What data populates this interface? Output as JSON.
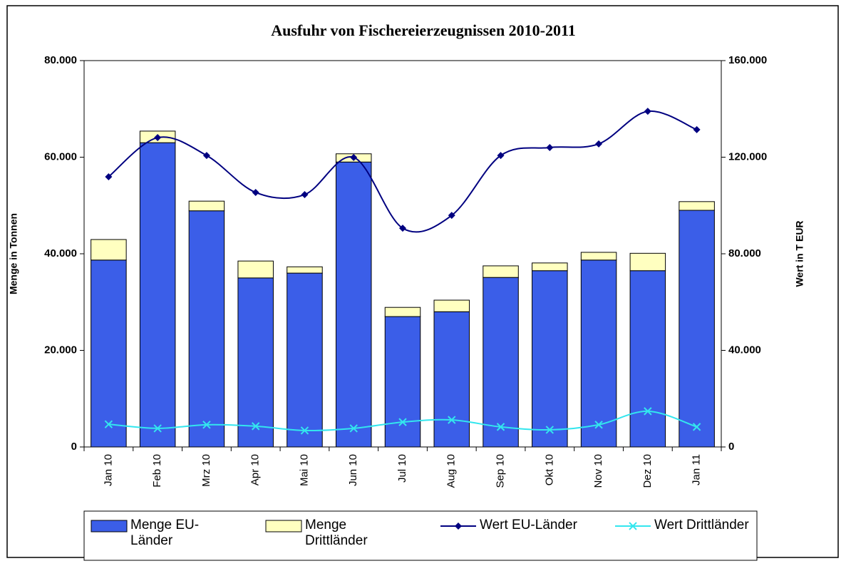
{
  "chart_data": {
    "type": "bar-line",
    "title": "Ausfuhr von Fischereierzeugnissen 2010-2011",
    "y_label": "Menge in Tonnen",
    "y2_label": "Wert in T EUR",
    "categories": [
      "Jan 10",
      "Feb 10",
      "Mrz 10",
      "Apr 10",
      "Mai 10",
      "Jun 10",
      "Jul 10",
      "Aug 10",
      "Sep 10",
      "Okt 10",
      "Nov 10",
      "Dez 10",
      "Jan 11"
    ],
    "series": [
      {
        "name": "Menge EU-Länder",
        "type": "bar",
        "color": "#3b5ee8",
        "values": [
          38700,
          63000,
          48900,
          35000,
          36000,
          59000,
          27000,
          28000,
          35100,
          36500,
          38700,
          36500,
          49000
        ]
      },
      {
        "name": "Menge Drittländer",
        "type": "bar",
        "color": "#ffffc0",
        "values": [
          4250,
          2400,
          2000,
          3500,
          1300,
          1700,
          1900,
          2400,
          2400,
          1600,
          1600,
          3600,
          1800
        ]
      },
      {
        "name": "Wert EU-Länder",
        "type": "line",
        "axis": "y2",
        "marker": "diamond",
        "color": "#000080",
        "values": [
          111900,
          128100,
          120700,
          105400,
          104500,
          119900,
          90600,
          95900,
          120700,
          124000,
          125500,
          139000,
          131400
        ]
      },
      {
        "name": "Wert Drittländer",
        "type": "line",
        "axis": "y2",
        "marker": "x",
        "color": "#33e6ee",
        "values": [
          9400,
          7700,
          9200,
          8600,
          6800,
          7700,
          10300,
          11200,
          8300,
          7100,
          9200,
          14800,
          8300
        ]
      }
    ],
    "ylim": [
      0,
      80000
    ],
    "yticks": [
      {
        "value": 0,
        "label": "0"
      },
      {
        "value": 20000,
        "label": "20.000"
      },
      {
        "value": 40000,
        "label": "40.000"
      },
      {
        "value": 60000,
        "label": "60.000"
      },
      {
        "value": 80000,
        "label": "80.000"
      }
    ],
    "y2lim": [
      0,
      160000
    ],
    "y2ticks": [
      {
        "value": 0,
        "label": "0"
      },
      {
        "value": 40000,
        "label": "40.000"
      },
      {
        "value": 80000,
        "label": "80.000"
      },
      {
        "value": 120000,
        "label": "120.000"
      },
      {
        "value": 160000,
        "label": "160.000"
      }
    ]
  }
}
